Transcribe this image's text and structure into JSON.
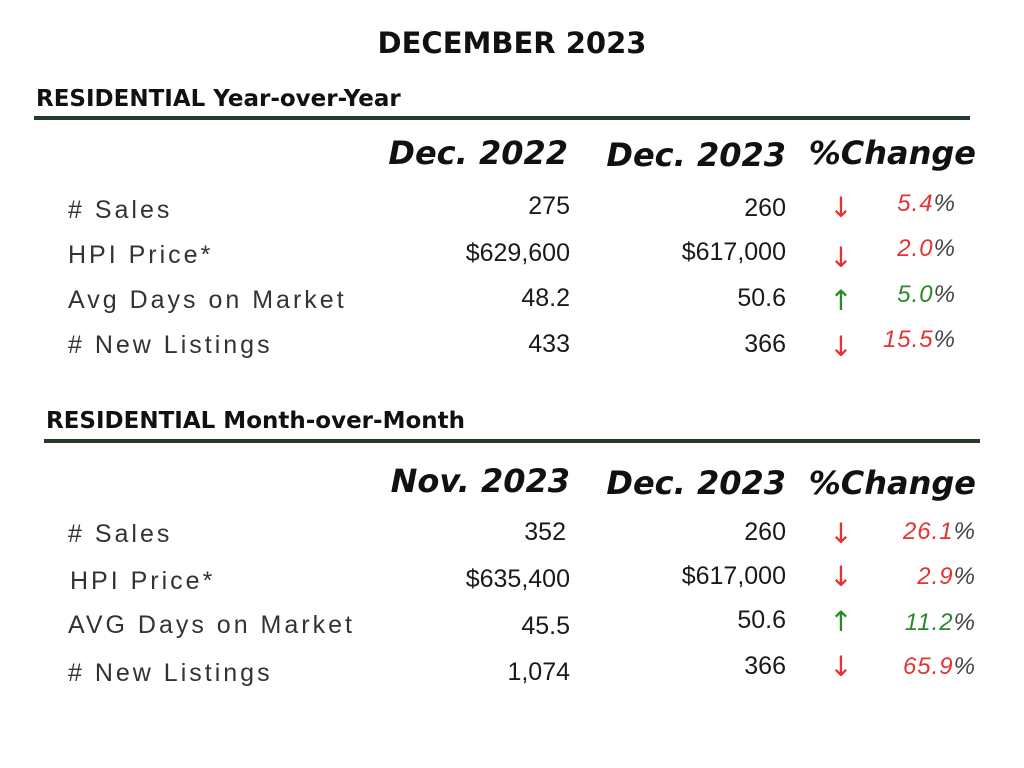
{
  "title": "DECEMBER 2023",
  "colors": {
    "up": "#2a8a2a",
    "down": "#e53333",
    "rule": "#233c2a"
  },
  "sections": [
    {
      "title": "RESIDENTIAL  Year-over-Year",
      "columns": [
        "Dec. 2022",
        "Dec. 2023",
        "%Change"
      ],
      "rows": [
        {
          "label": "# Sales",
          "prev": "275",
          "curr": "260",
          "direction": "down",
          "change": "5.4",
          "unit": "%"
        },
        {
          "label": "HPI  Price*",
          "prev": "$629,600",
          "curr": "$617,000",
          "direction": "down",
          "change": "2.0",
          "unit": "%"
        },
        {
          "label": "Avg Days on Market",
          "prev": "48.2",
          "curr": "50.6",
          "direction": "up",
          "change": "5.0",
          "unit": "%"
        },
        {
          "label": "# New Listings",
          "prev": "433",
          "curr": "366",
          "direction": "down",
          "change": "15.5",
          "unit": "%"
        }
      ]
    },
    {
      "title": "RESIDENTIAL Month-over-Month",
      "columns": [
        "Nov. 2023",
        "Dec. 2023",
        "%Change"
      ],
      "rows": [
        {
          "label": "# Sales",
          "prev": "352",
          "curr": "260",
          "direction": "down",
          "change": "26.1",
          "unit": "%"
        },
        {
          "label": "HPI  Price*",
          "prev": "$635,400",
          "curr": "$617,000",
          "direction": "down",
          "change": "2.9",
          "unit": "%"
        },
        {
          "label": "AVG Days on Market",
          "prev": "45.5",
          "curr": "50.6",
          "direction": "up",
          "change": "11.2",
          "unit": "%"
        },
        {
          "label": "# New Listings",
          "prev": "1,074",
          "curr": "366",
          "direction": "down",
          "change": "65.9",
          "unit": "%"
        }
      ]
    }
  ]
}
